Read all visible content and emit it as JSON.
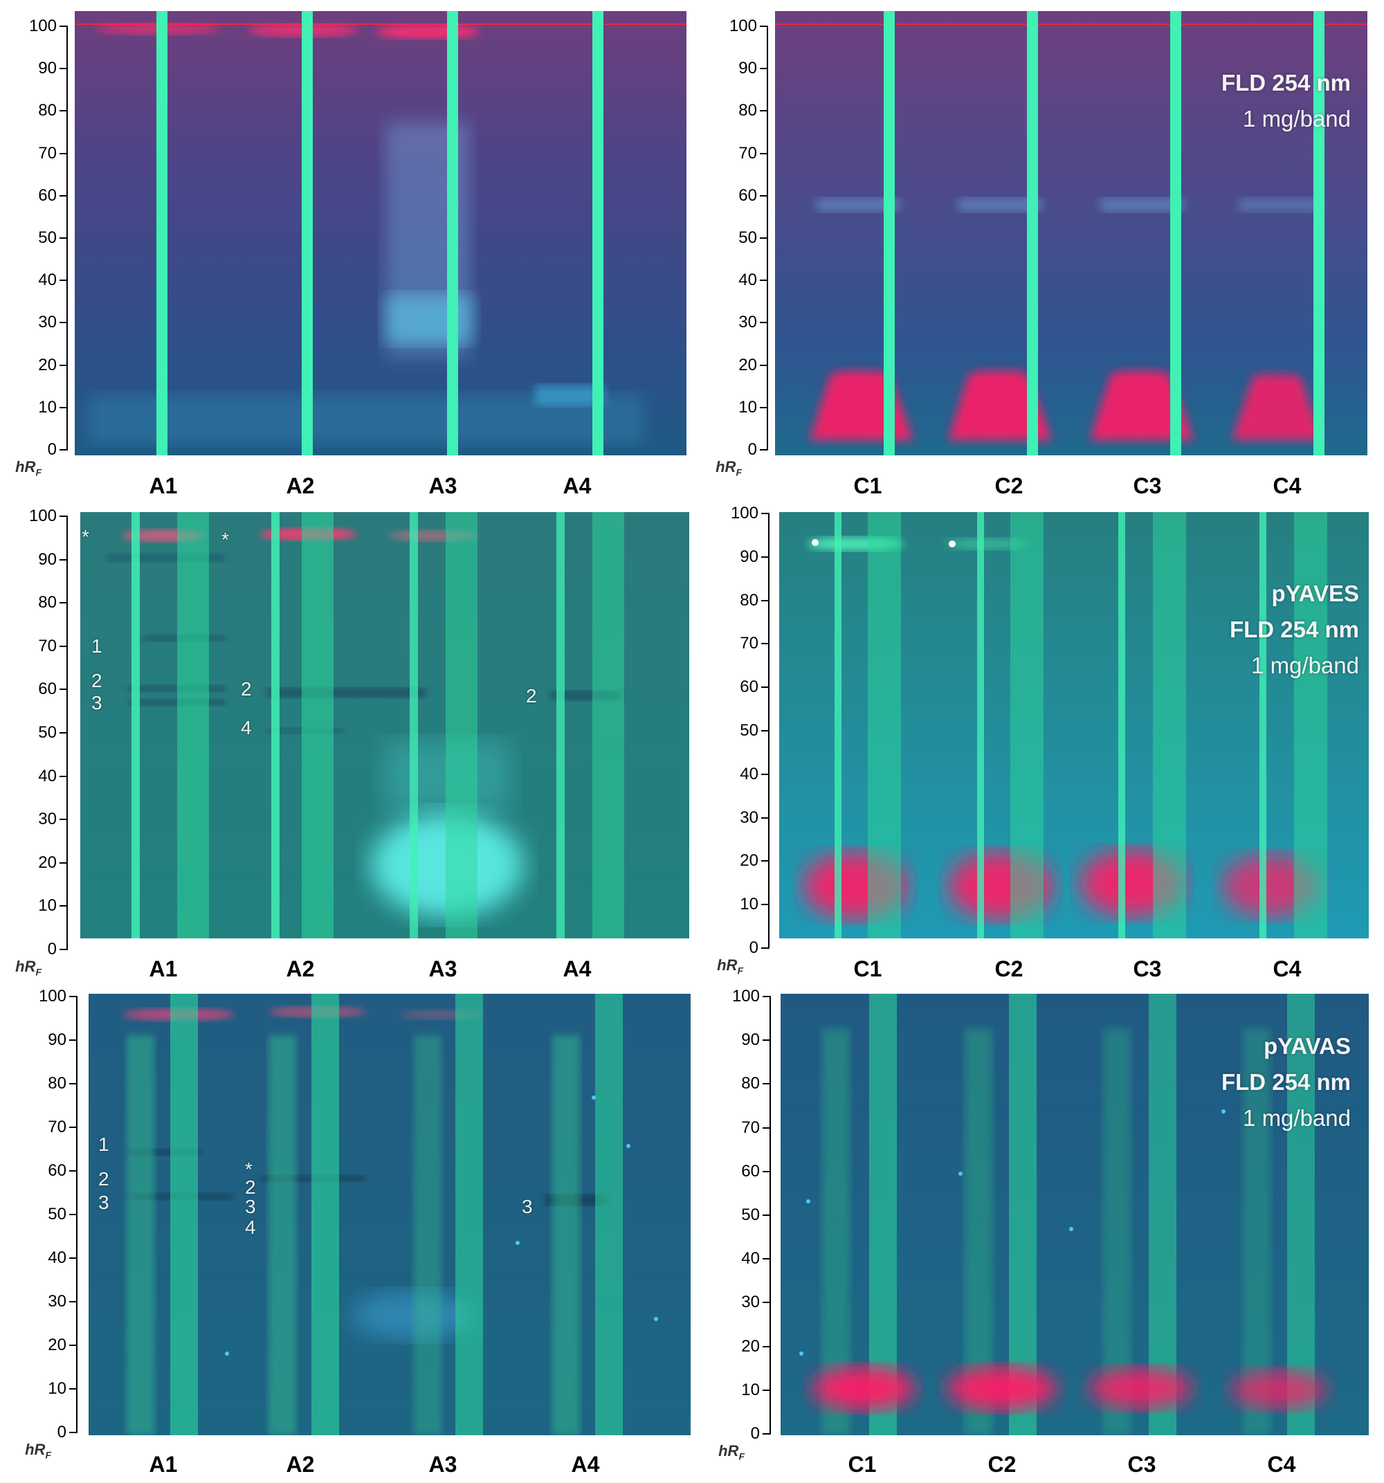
{
  "colors": {
    "plate_top": "#2f4f8a",
    "plate_top_tint": "#6e3f7e",
    "plate_mid": "#24827f",
    "plate_bottom": "#1f6b83",
    "track": "#41f0b4",
    "track_glow": "#2cd99c",
    "red_zone": "#ff1f66",
    "cyan_blob": "#62f8f0",
    "solvent_front": "#e8264a",
    "axis": "#000000",
    "label_text": "#000000",
    "caption_text": "#f4f4f4"
  },
  "axis": {
    "unit_label": "hR",
    "unit_subscript": "F",
    "ticks": [
      "100",
      "90",
      "80",
      "70",
      "60",
      "50",
      "40",
      "30",
      "20",
      "10",
      "0"
    ]
  },
  "panels": {
    "row1_left": {
      "lanes": [
        "A1",
        "A2",
        "A3",
        "A4"
      ]
    },
    "row1_right": {
      "lanes": [
        "C1",
        "C2",
        "C3",
        "C4"
      ],
      "caption": [
        "FLD 254 nm",
        "1 mg/band"
      ]
    },
    "row2_left": {
      "lanes": [
        "A1",
        "A2",
        "A3",
        "A4"
      ],
      "band_labels": [
        "*",
        "*",
        "1",
        "2",
        "3",
        "2",
        "4",
        "2"
      ]
    },
    "row2_right": {
      "lanes": [
        "C1",
        "C2",
        "C3",
        "C4"
      ],
      "caption": [
        "pYAVES",
        "FLD 254 nm",
        "1 mg/band"
      ]
    },
    "row3_left": {
      "lanes": [
        "A1",
        "A2",
        "A3",
        "A4"
      ],
      "band_labels": [
        "1",
        "2",
        "3",
        "*",
        "2",
        "3",
        "4",
        "3"
      ]
    },
    "row3_right": {
      "lanes": [
        "C1",
        "C2",
        "C3",
        "C4"
      ],
      "caption": [
        "pYAVAS",
        "FLD 254 nm",
        "1 mg/band"
      ]
    }
  }
}
